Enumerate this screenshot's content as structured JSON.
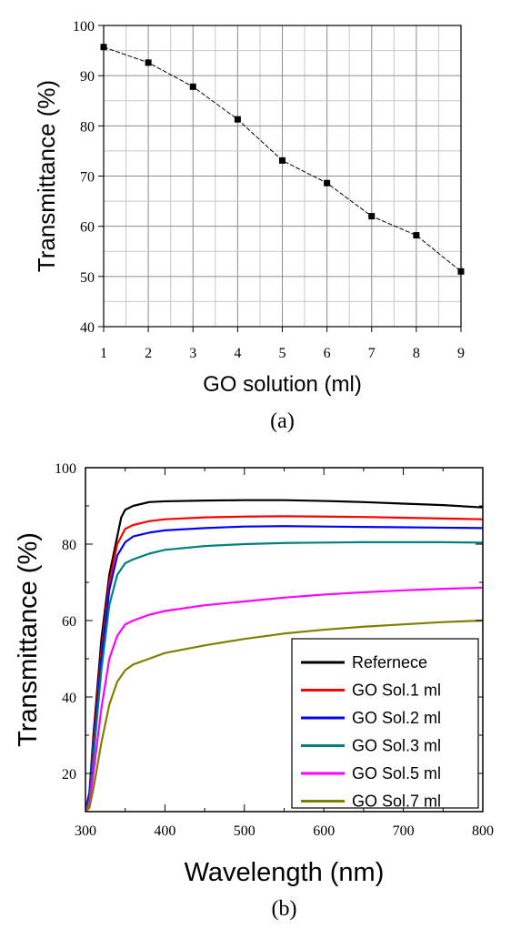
{
  "chart_data": [
    {
      "type": "line",
      "panel_label": "(a)",
      "xlabel": "GO solution (ml)",
      "ylabel": "Transmittance (%)",
      "xlim": [
        1,
        9
      ],
      "ylim": [
        40,
        100
      ],
      "xticks": [
        1,
        2,
        3,
        4,
        5,
        6,
        7,
        8,
        9
      ],
      "yticks": [
        40,
        50,
        60,
        70,
        80,
        90,
        100
      ],
      "grid": true,
      "series": [
        {
          "color": "#000000",
          "marker": "square",
          "x": [
            1,
            2,
            3,
            4,
            5,
            6,
            7,
            8,
            9
          ],
          "y": [
            95.7,
            92.6,
            87.8,
            81.3,
            73.1,
            68.6,
            62.0,
            58.2,
            51.0
          ]
        }
      ]
    },
    {
      "type": "line",
      "panel_label": "(b)",
      "xlabel": "Wavelength (nm)",
      "ylabel": "Transmittance (%)",
      "xlim": [
        300,
        800
      ],
      "ylim": [
        10,
        100
      ],
      "xticks": [
        300,
        400,
        500,
        600,
        700,
        800
      ],
      "yticks": [
        20,
        40,
        60,
        80,
        100
      ],
      "grid": false,
      "legend_position": "bottom-right",
      "series": [
        {
          "name": "Refernece",
          "color": "#000000",
          "x": [
            300,
            305,
            310,
            320,
            330,
            340,
            345,
            350,
            360,
            380,
            400,
            450,
            500,
            550,
            600,
            650,
            700,
            750,
            800
          ],
          "y": [
            10,
            15,
            30,
            55,
            72,
            82,
            87,
            89,
            90,
            91,
            91.2,
            91.4,
            91.5,
            91.5,
            91.3,
            91.0,
            90.6,
            90.2,
            89.6
          ]
        },
        {
          "name": "GO Sol.1 ml",
          "color": "#ff0000",
          "x": [
            300,
            305,
            310,
            320,
            330,
            340,
            350,
            360,
            380,
            400,
            450,
            500,
            550,
            600,
            650,
            700,
            750,
            800
          ],
          "y": [
            10,
            14,
            28,
            52,
            70,
            80,
            84,
            85,
            86,
            86.5,
            87,
            87.2,
            87.3,
            87.2,
            87.1,
            86.9,
            86.7,
            86.5
          ]
        },
        {
          "name": "GO Sol.2 ml",
          "color": "#0000ff",
          "x": [
            300,
            305,
            310,
            320,
            330,
            340,
            350,
            360,
            380,
            400,
            450,
            500,
            550,
            600,
            650,
            700,
            750,
            800
          ],
          "y": [
            10,
            14,
            26,
            50,
            68,
            77,
            80.5,
            82,
            83,
            83.6,
            84.2,
            84.6,
            84.7,
            84.6,
            84.5,
            84.4,
            84.3,
            84.2
          ]
        },
        {
          "name": "GO Sol.3 ml",
          "color": "#008080",
          "x": [
            300,
            305,
            310,
            320,
            330,
            340,
            350,
            360,
            380,
            400,
            450,
            500,
            550,
            600,
            650,
            700,
            750,
            800
          ],
          "y": [
            10,
            13,
            24,
            47,
            64,
            72,
            75,
            76,
            77.5,
            78.5,
            79.5,
            80,
            80.3,
            80.4,
            80.5,
            80.5,
            80.5,
            80.4
          ]
        },
        {
          "name": "GO Sol.5 ml",
          "color": "#ff00ff",
          "x": [
            300,
            305,
            310,
            320,
            330,
            340,
            350,
            360,
            380,
            400,
            450,
            500,
            550,
            600,
            650,
            700,
            750,
            800
          ],
          "y": [
            10,
            12,
            20,
            37,
            50,
            56,
            59,
            60,
            61.5,
            62.5,
            64,
            65,
            66,
            66.8,
            67.4,
            67.9,
            68.3,
            68.6
          ]
        },
        {
          "name": "GO Sol.7 ml",
          "color": "#808000",
          "x": [
            300,
            305,
            310,
            320,
            330,
            340,
            350,
            360,
            380,
            400,
            450,
            500,
            550,
            600,
            650,
            700,
            750,
            800
          ],
          "y": [
            10,
            11,
            16,
            28,
            38,
            44,
            47,
            48.5,
            50,
            51.5,
            53.5,
            55.2,
            56.6,
            57.6,
            58.4,
            59.0,
            59.6,
            60.0
          ]
        }
      ]
    }
  ]
}
